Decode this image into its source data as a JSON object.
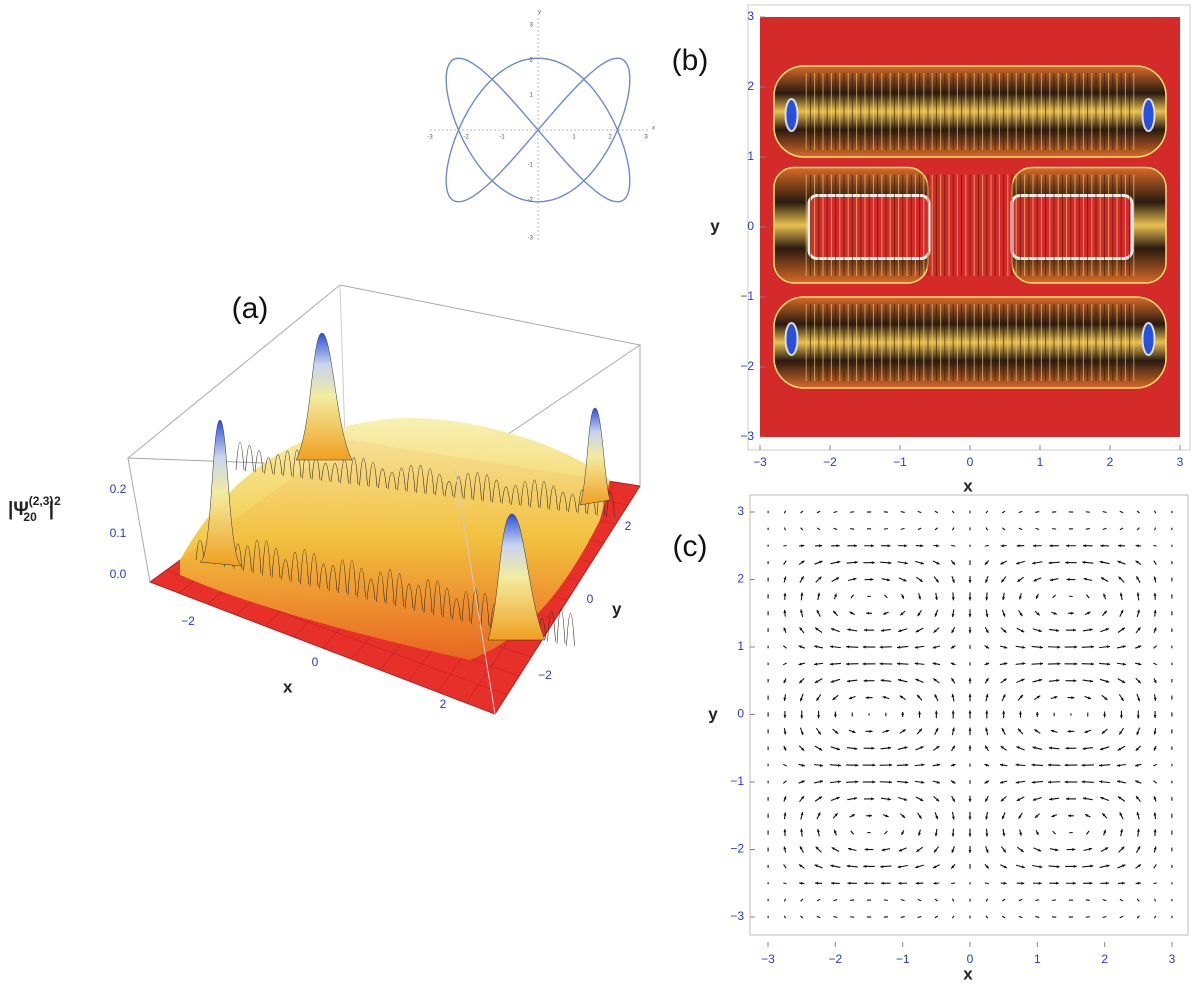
{
  "inset": {
    "x_label": "x",
    "y_label": "y",
    "x_ticks": [
      "-3",
      "-2",
      "-1",
      "1",
      "2",
      "3"
    ],
    "y_ticks": [
      "3",
      "2",
      "1",
      "-1",
      "-2",
      "-3"
    ]
  },
  "panel_a": {
    "label": "(a)",
    "z_label": {
      "open": "|Ψ",
      "sup": "(2,3)",
      "sub": "20",
      "close": "|",
      "power": "2"
    },
    "z_ticks": [
      "0.0",
      "0.1",
      "0.2"
    ],
    "x_ticks": [
      "−2",
      "0",
      "2"
    ],
    "y_ticks": [
      "2",
      "0",
      "−2"
    ],
    "x_label": "x",
    "y_label": "y"
  },
  "panel_b": {
    "label": "(b)",
    "x_label": "x",
    "y_label": "y",
    "x_ticks": [
      "−3",
      "−2",
      "−1",
      "0",
      "1",
      "2",
      "3"
    ],
    "y_ticks": [
      "3",
      "2",
      "1",
      "0",
      "−1",
      "−2",
      "−3"
    ]
  },
  "panel_c": {
    "label": "(c)",
    "x_label": "x",
    "y_label": "y",
    "x_ticks": [
      "−3",
      "−2",
      "−1",
      "0",
      "1",
      "2",
      "3"
    ],
    "y_ticks": [
      "3",
      "2",
      "1",
      "0",
      "−1",
      "−2",
      "−3"
    ]
  }
}
